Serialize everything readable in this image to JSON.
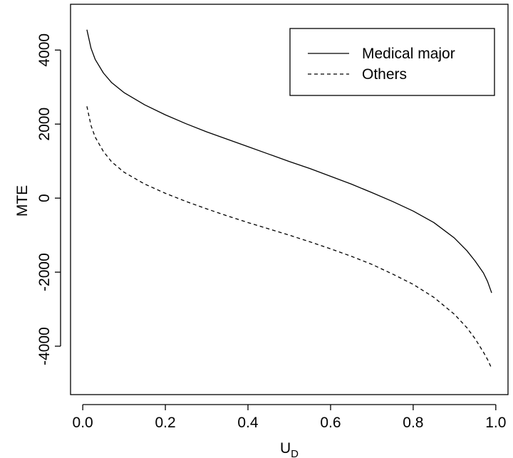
{
  "chart_data": {
    "type": "line",
    "title": "",
    "xlabel": "U",
    "xlabel_subscript": "D",
    "ylabel": "MTE",
    "xlim": [
      -0.0296,
      1.0296
    ],
    "ylim": [
      -5308,
      5237
    ],
    "x_ticks": [
      0.0,
      0.2,
      0.4,
      0.6,
      0.8,
      1.0
    ],
    "x_tick_labels": [
      "0.0",
      "0.2",
      "0.4",
      "0.6",
      "0.8",
      "1.0"
    ],
    "y_ticks": [
      -4000,
      -2000,
      0,
      2000,
      4000
    ],
    "y_tick_labels": [
      "-4000",
      "-2000",
      "0",
      "2000",
      "4000"
    ],
    "grid": false,
    "legend_position": "top-right",
    "series": [
      {
        "name": "Medical major",
        "line_style": "solid",
        "x": [
          0.01,
          0.02,
          0.03,
          0.05,
          0.07,
          0.1,
          0.15,
          0.2,
          0.25,
          0.3,
          0.35,
          0.4,
          0.45,
          0.5,
          0.55,
          0.6,
          0.65,
          0.7,
          0.75,
          0.8,
          0.85,
          0.9,
          0.93,
          0.95,
          0.97,
          0.98,
          0.99
        ],
        "y": [
          4550,
          4050,
          3750,
          3380,
          3120,
          2850,
          2520,
          2250,
          2010,
          1790,
          1590,
          1390,
          1190,
          990,
          800,
          590,
          380,
          150,
          -90,
          -350,
          -660,
          -1080,
          -1420,
          -1700,
          -2020,
          -2250,
          -2560
        ]
      },
      {
        "name": "Others",
        "line_style": "dashed",
        "x": [
          0.01,
          0.02,
          0.03,
          0.05,
          0.07,
          0.1,
          0.15,
          0.2,
          0.25,
          0.3,
          0.35,
          0.4,
          0.45,
          0.5,
          0.55,
          0.6,
          0.65,
          0.7,
          0.75,
          0.8,
          0.85,
          0.9,
          0.93,
          0.95,
          0.97,
          0.98,
          0.99
        ],
        "y": [
          2480,
          1960,
          1650,
          1260,
          980,
          700,
          380,
          130,
          -90,
          -290,
          -480,
          -660,
          -830,
          -1000,
          -1180,
          -1370,
          -1570,
          -1790,
          -2050,
          -2330,
          -2680,
          -3140,
          -3500,
          -3800,
          -4160,
          -4360,
          -4600
        ]
      }
    ]
  }
}
